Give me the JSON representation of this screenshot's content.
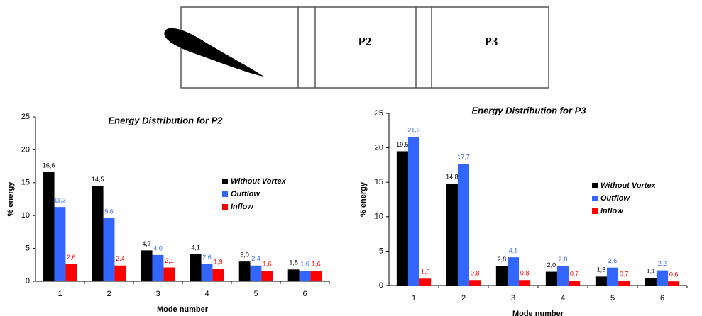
{
  "diagram": {
    "labels": [
      "P2",
      "P3"
    ]
  },
  "chart_data": [
    {
      "type": "bar",
      "title": "Energy Distribution for P2",
      "x_label": "Mode number",
      "y_label": "% energy",
      "categories": [
        "1",
        "2",
        "3",
        "4",
        "5",
        "6"
      ],
      "ylim": [
        0,
        25
      ],
      "yticks": [
        0,
        5,
        10,
        15,
        20,
        25
      ],
      "series": [
        {
          "name": "Without Vortex",
          "color": "#000000",
          "values": [
            16.6,
            14.5,
            4.7,
            4.1,
            3.0,
            1.8
          ],
          "value_labels": [
            "16,6",
            "14,5",
            "4,7",
            "4,1",
            "3,0",
            "1,8"
          ]
        },
        {
          "name": "Outflow",
          "color": "#3366ff",
          "values": [
            11.3,
            9.6,
            4.0,
            2.6,
            2.4,
            1.6
          ],
          "value_labels": [
            "11,3",
            "9,6",
            "4,0",
            "2,6",
            "2,4",
            "1,6"
          ]
        },
        {
          "name": "Inflow",
          "color": "#ff0000",
          "values": [
            2.6,
            2.4,
            2.1,
            1.9,
            1.6,
            1.6
          ],
          "value_labels": [
            "2,6",
            "2,4",
            "2,1",
            "1,9",
            "1,6",
            "1,6"
          ]
        }
      ]
    },
    {
      "type": "bar",
      "title": "Energy Distribution for P3",
      "x_label": "Mode number",
      "y_label": "% energy",
      "categories": [
        "1",
        "2",
        "3",
        "4",
        "5",
        "6"
      ],
      "ylim": [
        0,
        25
      ],
      "yticks": [
        0,
        5,
        10,
        15,
        20,
        25
      ],
      "series": [
        {
          "name": "Without Vortex",
          "color": "#000000",
          "values": [
            19.5,
            14.8,
            2.8,
            2.0,
            1.3,
            1.1
          ],
          "value_labels": [
            "19,5",
            "14,8",
            "2,8",
            "2,0",
            "1,3",
            "1,1"
          ]
        },
        {
          "name": "Outflow",
          "color": "#3366ff",
          "values": [
            21.6,
            17.7,
            4.1,
            2.8,
            2.6,
            2.2
          ],
          "value_labels": [
            "21,6",
            "17,7",
            "4,1",
            "2,8",
            "2,6",
            "2,2"
          ]
        },
        {
          "name": "Inflow",
          "color": "#ff0000",
          "values": [
            1.0,
            0.8,
            0.8,
            0.7,
            0.7,
            0.6
          ],
          "value_labels": [
            "1,0",
            "0,8",
            "0,8",
            "0,7",
            "0,7",
            "0,6"
          ]
        }
      ]
    }
  ]
}
